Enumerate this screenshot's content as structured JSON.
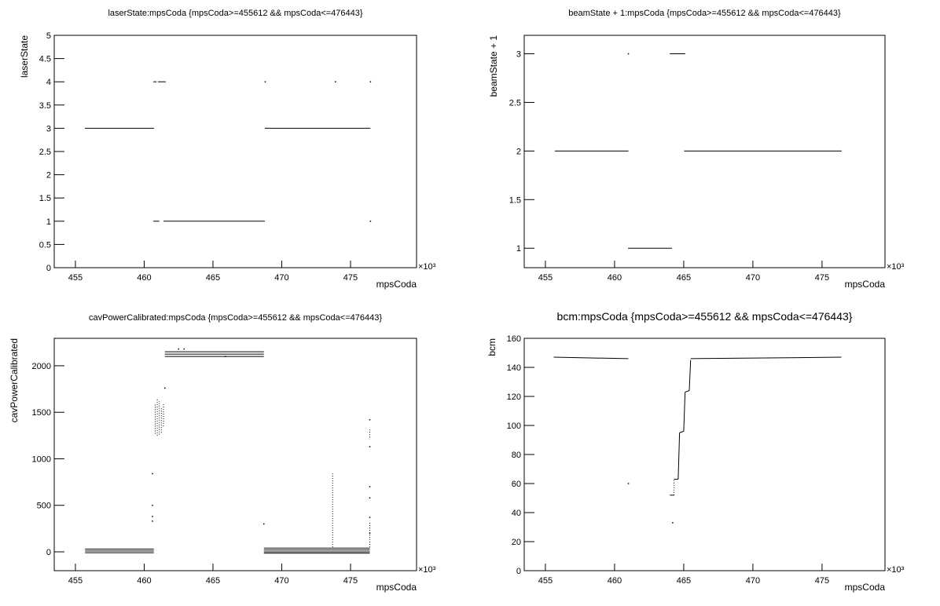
{
  "chart_data": [
    {
      "type": "scatter",
      "title": "laserState:mpsCoda {mpsCoda>=455612 && mpsCoda<=476443}",
      "x_label": "mpsCoda",
      "y_label": "laserState",
      "x_multiplier": "×10³",
      "color": "#000000",
      "xlim": [
        453.46,
        479.8
      ],
      "ylim": [
        0,
        5
      ],
      "xticks": [
        455,
        460,
        465,
        470,
        475
      ],
      "yticks": [
        0,
        0.5,
        1,
        1.5,
        2,
        2.5,
        3,
        3.5,
        4,
        4.5,
        5
      ],
      "segments": [
        [
          455.69,
          3,
          460.71,
          3
        ],
        [
          468.77,
          3,
          476.45,
          3
        ],
        [
          460.66,
          4,
          460.9,
          4
        ],
        [
          461.0,
          4,
          461.57,
          4
        ],
        [
          460.66,
          1,
          461.1,
          1
        ],
        [
          461.4,
          1,
          468.77,
          1
        ]
      ],
      "points": [
        [
          468.8,
          4
        ],
        [
          473.9,
          4
        ],
        [
          476.45,
          4
        ],
        [
          476.45,
          1
        ]
      ]
    },
    {
      "type": "scatter",
      "title": "beamState + 1:mpsCoda {mpsCoda>=455612 && mpsCoda<=476443}",
      "x_label": "mpsCoda",
      "y_label": "beamState + 1",
      "x_multiplier": "×10³",
      "color": "#000000",
      "xlim": [
        453.47,
        479.55
      ],
      "ylim": [
        0.8,
        3.19
      ],
      "xticks": [
        455,
        460,
        465,
        470,
        475
      ],
      "yticks": [
        1,
        1.5,
        2,
        2.5,
        3
      ],
      "segments": [
        [
          455.68,
          2,
          461.0,
          2
        ],
        [
          465.03,
          2,
          476.42,
          2
        ],
        [
          460.97,
          1,
          464.15,
          1
        ],
        [
          464.0,
          3,
          465.1,
          3
        ]
      ],
      "points": [
        [
          461.0,
          3
        ]
      ]
    },
    {
      "type": "scatter",
      "title": "cavPowerCalibrated:mpsCoda {mpsCoda>=455612 && mpsCoda<=476443}",
      "x_label": "mpsCoda",
      "y_label": "cavPowerCalibrated",
      "x_multiplier": "×10³",
      "color": "#000000",
      "xlim": [
        453.46,
        479.8
      ],
      "ylim": [
        -202.5,
        2295
      ],
      "xticks": [
        455,
        460,
        465,
        470,
        475
      ],
      "yticks": [
        0,
        500,
        1000,
        1500,
        2000
      ],
      "segments": [
        [
          455.7,
          30,
          460.7,
          30
        ],
        [
          455.7,
          10,
          460.7,
          10
        ],
        [
          455.7,
          -10,
          460.7,
          -10
        ],
        [
          468.7,
          40,
          476.4,
          40
        ],
        [
          468.7,
          20,
          476.4,
          20
        ],
        [
          468.7,
          0,
          476.4,
          0
        ],
        [
          468.7,
          -15,
          476.4,
          -15
        ],
        [
          461.5,
          2150,
          468.7,
          2150
        ],
        [
          461.5,
          2125,
          468.7,
          2125
        ],
        [
          461.5,
          2100,
          468.7,
          2100
        ],
        [
          460.8,
          1270,
          460.8,
          1600
        ],
        [
          460.95,
          1250,
          460.95,
          1650
        ],
        [
          461.1,
          1260,
          461.1,
          1620
        ],
        [
          461.25,
          1280,
          461.25,
          1550
        ],
        [
          461.4,
          1350,
          461.4,
          1600
        ],
        [
          473.7,
          50,
          473.7,
          860
        ],
        [
          476.4,
          50,
          476.4,
          330
        ],
        [
          476.4,
          1230,
          476.4,
          1330
        ]
      ],
      "points": [
        [
          460.6,
          840
        ],
        [
          460.6,
          500
        ],
        [
          460.6,
          380
        ],
        [
          460.6,
          330
        ],
        [
          461.5,
          1760
        ],
        [
          462.5,
          2180
        ],
        [
          462.9,
          2180
        ],
        [
          465.9,
          2100
        ],
        [
          468.7,
          300
        ],
        [
          476.4,
          1420
        ],
        [
          476.4,
          1130
        ],
        [
          476.4,
          700
        ],
        [
          476.4,
          580
        ],
        [
          476.4,
          370
        ],
        [
          476.4,
          200
        ]
      ]
    },
    {
      "type": "scatter",
      "title": "bcm:mpsCoda {mpsCoda>=455612 && mpsCoda<=476443}",
      "x_label": "mpsCoda",
      "y_label": "bcm",
      "x_multiplier": "×10³",
      "color": "#000000",
      "xlim": [
        453.47,
        479.55
      ],
      "ylim": [
        0,
        160
      ],
      "xticks": [
        455,
        460,
        465,
        470,
        475
      ],
      "yticks": [
        0,
        20,
        40,
        60,
        80,
        100,
        120,
        140,
        160
      ],
      "segments": [
        [
          455.6,
          147,
          461.0,
          146
        ],
        [
          464.0,
          52,
          464.3,
          52
        ],
        [
          464.3,
          52,
          464.3,
          63
        ],
        [
          464.3,
          63,
          464.6,
          63
        ],
        [
          464.6,
          63,
          464.7,
          95
        ],
        [
          464.7,
          95,
          465.0,
          96
        ],
        [
          465.0,
          96,
          465.1,
          123
        ],
        [
          465.1,
          123,
          465.4,
          124
        ],
        [
          465.4,
          124,
          465.5,
          145
        ],
        [
          465.5,
          146,
          476.4,
          147
        ]
      ],
      "points": [
        [
          461.0,
          60
        ],
        [
          464.2,
          33
        ]
      ]
    }
  ]
}
